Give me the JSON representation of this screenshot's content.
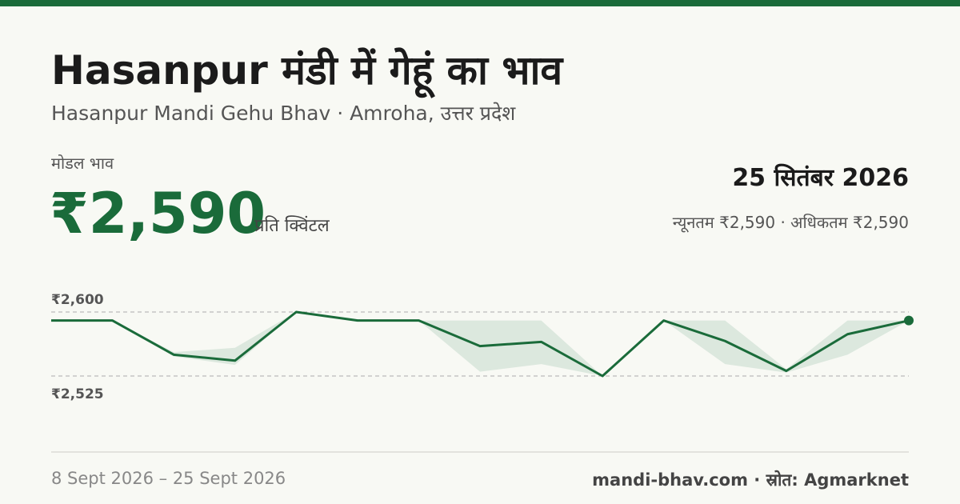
{
  "header": {
    "title": "Hasanpur मंडी में गेहूं का भाव",
    "subtitle": "Hasanpur Mandi Gehu Bhav · Amroha, उत्तर प्रदेश"
  },
  "price": {
    "caption": "मोडल भाव",
    "value": "₹2,590",
    "unit": "प्रति क्विंटल",
    "date": "25 सितंबर 2026",
    "range": "न्यूनतम ₹2,590 · अधिकतम ₹2,590"
  },
  "chart_data": {
    "type": "line",
    "series": [
      {
        "color": "#1a6b3a",
        "values": [
          2590,
          2590,
          2550,
          2543,
          2600,
          2590,
          2590,
          2560,
          2565,
          2525,
          2590,
          2566,
          2531,
          2574,
          2590
        ]
      }
    ],
    "band": {
      "color": "#dce8de",
      "high": [
        2590,
        2590,
        2553,
        2558,
        2600,
        2590,
        2590,
        2590,
        2590,
        2525,
        2590,
        2590,
        2533,
        2590,
        2590
      ],
      "low": [
        2590,
        2590,
        2548,
        2538,
        2600,
        2590,
        2590,
        2530,
        2539,
        2525,
        2590,
        2539,
        2529,
        2550,
        2590
      ]
    },
    "ylim": [
      2510,
      2610
    ],
    "yticks": [
      {
        "value": 2525,
        "label": "₹2,525"
      },
      {
        "value": 2600,
        "label": "₹2,600"
      }
    ],
    "grid": true
  },
  "footer": {
    "range": "8 Sept 2026 – 25 Sept 2026",
    "source": "mandi-bhav.com · स्रोत: Agmarknet"
  }
}
